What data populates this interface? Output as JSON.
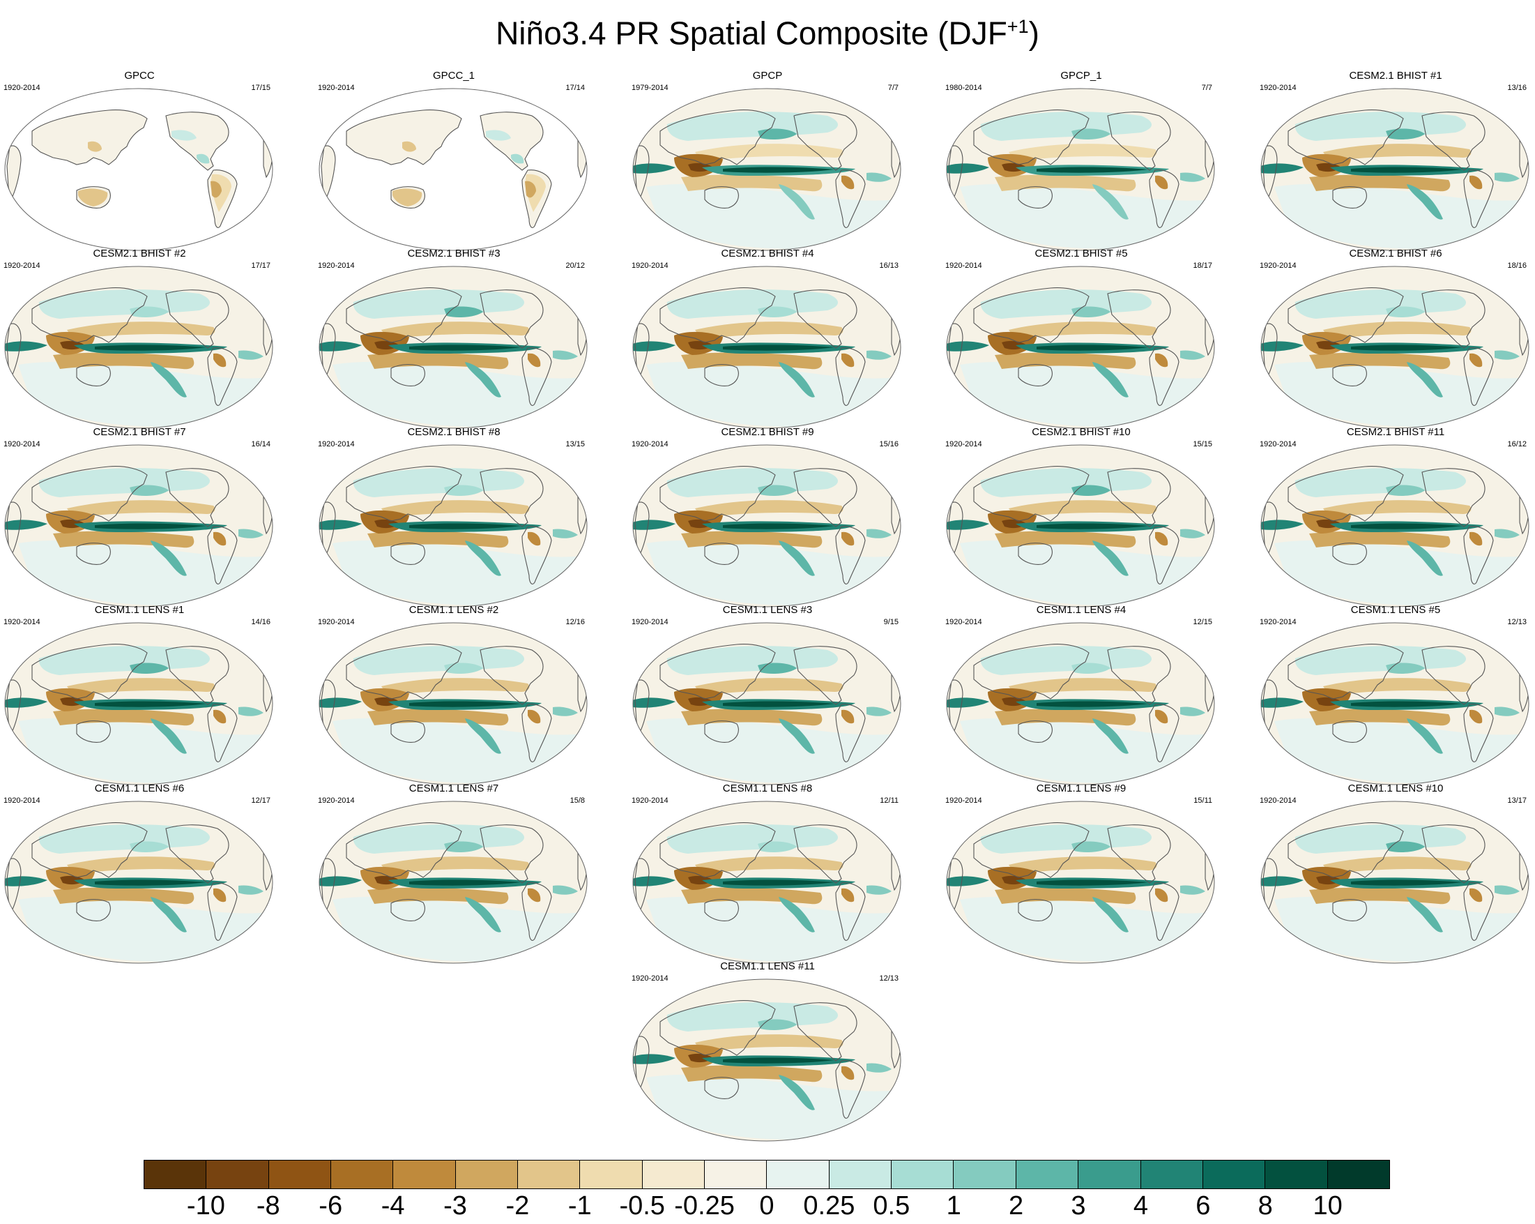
{
  "title": "Niño3.4 PR Spatial Composite (DJF",
  "title_sup": "+1",
  "panels": [
    {
      "title": "GPCC",
      "years": "1920-2014",
      "count": "17/15",
      "land_only": true
    },
    {
      "title": "GPCC_1",
      "years": "1920-2014",
      "count": "17/14",
      "land_only": true
    },
    {
      "title": "GPCP",
      "years": "1979-2014",
      "count": "7/7"
    },
    {
      "title": "GPCP_1",
      "years": "1980-2014",
      "count": "7/7"
    },
    {
      "title": "CESM2.1 BHIST #1",
      "years": "1920-2014",
      "count": "13/16"
    },
    {
      "title": "CESM2.1 BHIST #2",
      "years": "1920-2014",
      "count": "17/17"
    },
    {
      "title": "CESM2.1 BHIST #3",
      "years": "1920-2014",
      "count": "20/12"
    },
    {
      "title": "CESM2.1 BHIST #4",
      "years": "1920-2014",
      "count": "16/13"
    },
    {
      "title": "CESM2.1 BHIST #5",
      "years": "1920-2014",
      "count": "18/17"
    },
    {
      "title": "CESM2.1 BHIST #6",
      "years": "1920-2014",
      "count": "18/16"
    },
    {
      "title": "CESM2.1 BHIST #7",
      "years": "1920-2014",
      "count": "16/14"
    },
    {
      "title": "CESM2.1 BHIST #8",
      "years": "1920-2014",
      "count": "13/15"
    },
    {
      "title": "CESM2.1 BHIST #9",
      "years": "1920-2014",
      "count": "15/16"
    },
    {
      "title": "CESM2.1 BHIST #10",
      "years": "1920-2014",
      "count": "15/15"
    },
    {
      "title": "CESM2.1 BHIST #11",
      "years": "1920-2014",
      "count": "16/12"
    },
    {
      "title": "CESM1.1 LENS #1",
      "years": "1920-2014",
      "count": "14/16"
    },
    {
      "title": "CESM1.1 LENS #2",
      "years": "1920-2014",
      "count": "12/16"
    },
    {
      "title": "CESM1.1 LENS #3",
      "years": "1920-2014",
      "count": "9/15"
    },
    {
      "title": "CESM1.1 LENS #4",
      "years": "1920-2014",
      "count": "12/15"
    },
    {
      "title": "CESM1.1 LENS #5",
      "years": "1920-2014",
      "count": "12/13"
    },
    {
      "title": "CESM1.1 LENS #6",
      "years": "1920-2014",
      "count": "12/17"
    },
    {
      "title": "CESM1.1 LENS #7",
      "years": "1920-2014",
      "count": "15/8"
    },
    {
      "title": "CESM1.1 LENS #8",
      "years": "1920-2014",
      "count": "12/11"
    },
    {
      "title": "CESM1.1 LENS #9",
      "years": "1920-2014",
      "count": "15/11"
    },
    {
      "title": "CESM1.1 LENS #10",
      "years": "1920-2014",
      "count": "13/17"
    },
    {
      "title": "CESM1.1 LENS #11",
      "years": "1920-2014",
      "count": "12/13"
    }
  ],
  "colorbar": {
    "labels": [
      "-10",
      "-8",
      "-6",
      "-4",
      "-3",
      "-2",
      "-1",
      "-0.5",
      "-0.25",
      "0",
      "0.25",
      "0.5",
      "1",
      "2",
      "3",
      "4",
      "6",
      "8",
      "10"
    ],
    "colors": [
      "#5a3409",
      "#774310",
      "#8f5414",
      "#a86f24",
      "#bf8a3c",
      "#d0a75f",
      "#e2c58a",
      "#efdcaf",
      "#f5ead0",
      "#f6f2e6",
      "#e7f3f0",
      "#c9eae4",
      "#a7ddd4",
      "#84cbbf",
      "#5db6a8",
      "#3a9c8d",
      "#218475",
      "#0b6b5b",
      "#03513f",
      "#013a2b"
    ]
  }
}
